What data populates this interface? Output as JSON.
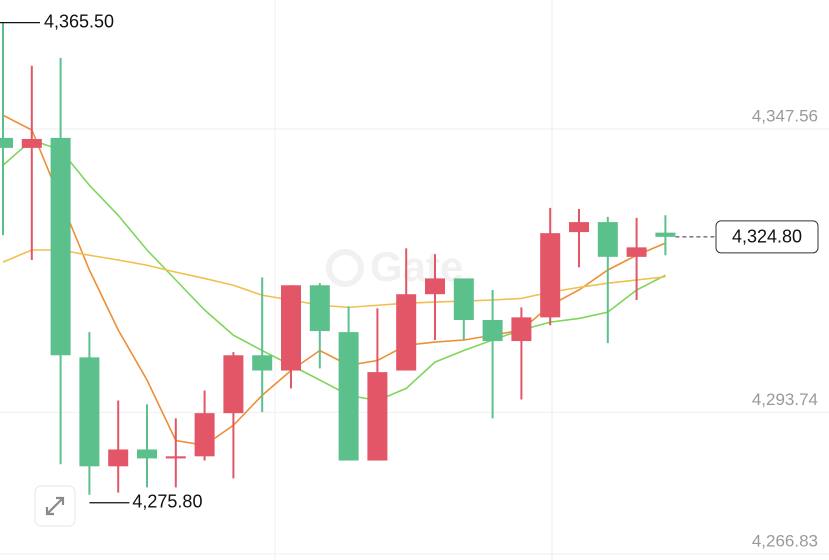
{
  "chart_data": {
    "type": "candlestick",
    "watermark": "Gate",
    "colors": {
      "up": "#e25668",
      "down": "#5cc08c"
    },
    "candles": [
      {
        "open": 4343.6,
        "high": 4365.5,
        "low": 4325.1,
        "close": 4341.7
      },
      {
        "open": 4341.7,
        "high": 4357.3,
        "low": 4320.4,
        "close": 4343.4
      },
      {
        "open": 4343.6,
        "high": 4358.8,
        "low": 4281.6,
        "close": 4302.3
      },
      {
        "open": 4301.9,
        "high": 4306.7,
        "low": 4275.8,
        "close": 4281.2
      },
      {
        "open": 4281.2,
        "high": 4293.7,
        "low": 4276.2,
        "close": 4284.4
      },
      {
        "open": 4284.4,
        "high": 4293.0,
        "low": 4277.2,
        "close": 4282.7
      },
      {
        "open": 4282.7,
        "high": 4290.3,
        "low": 4277.2,
        "close": 4283.1
      },
      {
        "open": 4283.1,
        "high": 4295.6,
        "low": 4282.3,
        "close": 4291.3
      },
      {
        "open": 4291.3,
        "high": 4302.9,
        "low": 4278.9,
        "close": 4302.3
      },
      {
        "open": 4302.3,
        "high": 4317.1,
        "low": 4291.5,
        "close": 4299.4
      },
      {
        "open": 4299.4,
        "high": 4315.6,
        "low": 4296.0,
        "close": 4315.6
      },
      {
        "open": 4315.6,
        "high": 4316.0,
        "low": 4299.8,
        "close": 4306.9
      },
      {
        "open": 4306.7,
        "high": 4311.6,
        "low": 4282.3,
        "close": 4282.3
      },
      {
        "open": 4282.3,
        "high": 4311.2,
        "low": 4282.3,
        "close": 4299.1
      },
      {
        "open": 4299.4,
        "high": 4322.6,
        "low": 4299.4,
        "close": 4313.9
      },
      {
        "open": 4313.9,
        "high": 4321.5,
        "low": 4305.2,
        "close": 4316.9
      },
      {
        "open": 4316.9,
        "high": 4316.9,
        "low": 4305.2,
        "close": 4309.0
      },
      {
        "open": 4309.0,
        "high": 4314.7,
        "low": 4290.3,
        "close": 4305.0
      },
      {
        "open": 4305.0,
        "high": 4311.4,
        "low": 4293.9,
        "close": 4309.5
      },
      {
        "open": 4309.5,
        "high": 4330.3,
        "low": 4308.0,
        "close": 4325.5
      },
      {
        "open": 4325.7,
        "high": 4330.1,
        "low": 4319.0,
        "close": 4327.6
      },
      {
        "open": 4327.6,
        "high": 4328.6,
        "low": 4304.6,
        "close": 4321.0
      },
      {
        "open": 4321.0,
        "high": 4328.4,
        "low": 4312.8,
        "close": 4322.8
      },
      {
        "open": 4325.6,
        "high": 4328.9,
        "low": 4321.3,
        "close": 4324.8
      }
    ],
    "moving_averages": [
      {
        "color": "#7fd65a",
        "values": [
          4338.4,
          4343.2,
          4341.3,
          4334.6,
          4328.9,
          4322.3,
          4316.6,
          4310.9,
          4306.1,
          4303.2,
          4300.4,
          4297.6,
          4294.7,
          4293.7,
          4296.0,
          4301.0,
          4303.2,
          4305.2,
          4307.1,
          4308.6,
          4309.3,
          4310.5,
          4314.7,
          4317.5
        ]
      },
      {
        "color": "#ee8f35",
        "values": [
          4347.9,
          4345.1,
          4331.8,
          4318.5,
          4307.1,
          4297.6,
          4286.1,
          4285.2,
          4289.0,
          4294.7,
          4299.4,
          4303.2,
          4300.4,
          4301.3,
          4304.2,
          4304.8,
          4305.2,
          4306.1,
          4307.1,
          4311.8,
          4314.7,
          4318.5,
          4321.3,
          4323.6
        ]
      },
      {
        "color": "#f2bf4e",
        "values": [
          4320.0,
          4322.3,
          4322.3,
          4321.3,
          4320.4,
          4319.4,
          4318.1,
          4316.9,
          4315.6,
          4313.7,
          4312.8,
          4311.8,
          4311.4,
          4311.8,
          4312.2,
          4312.4,
          4312.6,
          4312.8,
          4313.1,
          4314.3,
          4315.2,
          4316.0,
          4316.6,
          4317.2
        ]
      }
    ],
    "ylim": [
      4263.4,
      4369.8
    ],
    "yticks": [
      {
        "value": 4347.56,
        "label": "4,347.56"
      },
      {
        "value": 4293.74,
        "label": "4,293.74"
      },
      {
        "value": 4266.83,
        "label": "4,266.83"
      }
    ],
    "grid": true,
    "high_marker": {
      "value": 4365.5,
      "label": "4,365.50"
    },
    "low_marker": {
      "value": 4275.8,
      "label": "4,275.80"
    },
    "last_price": {
      "value": 4324.8,
      "label": "4,324.80"
    }
  }
}
